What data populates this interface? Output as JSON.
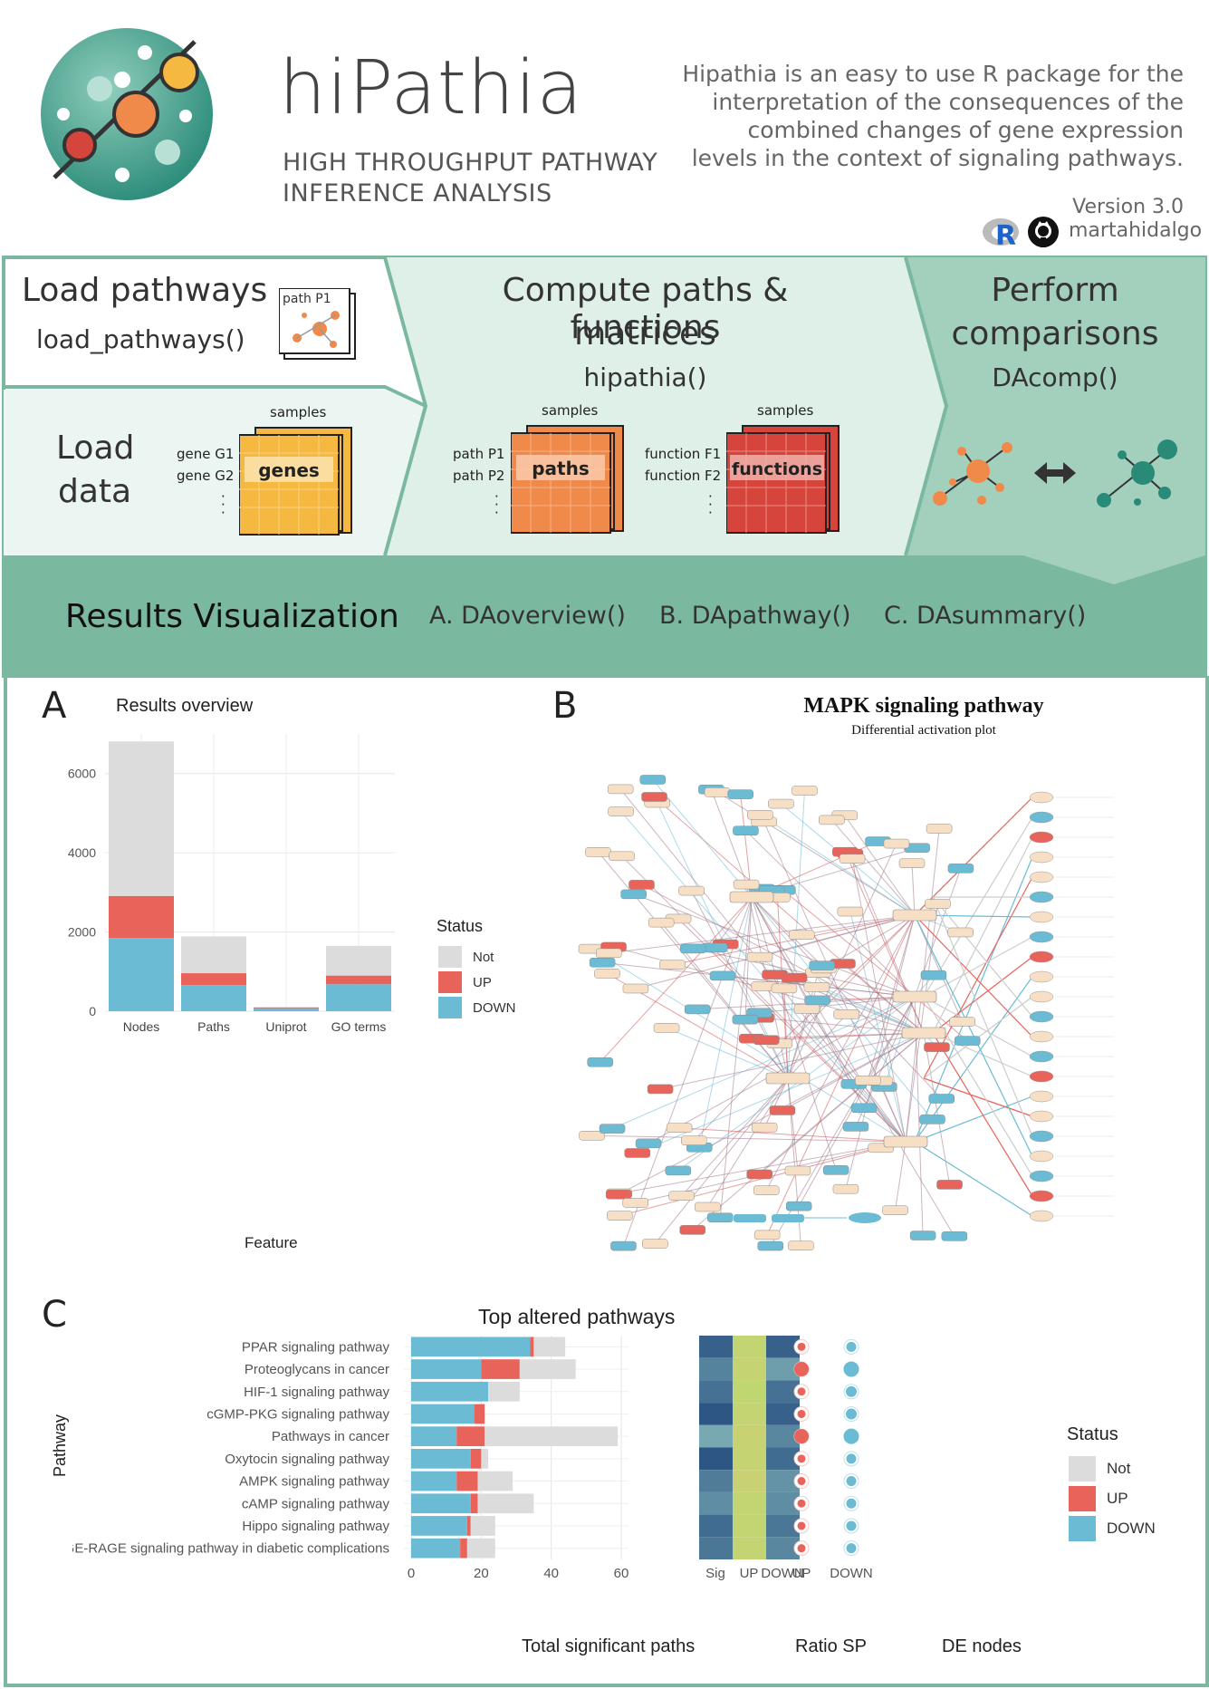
{
  "header": {
    "title": "hiPathia",
    "subtitle_line1": "HIGH THROUGHPUT  PATHWAY",
    "subtitle_line2": "INFERENCE ANALYSIS",
    "description": [
      "Hipathia is an easy to use R package for the",
      "interpretation of the consequences of the",
      "combined changes of gene expression",
      "levels in the context of signaling pathways."
    ],
    "version": "Version 3.0",
    "author": "martahidalgo",
    "r_logo_letter": "R"
  },
  "workflow": {
    "load_pathways": {
      "title": "Load pathways",
      "fn": "load_pathways()",
      "icon_label": "path P1"
    },
    "load_data": {
      "title_line1": "Load",
      "title_line2": "data",
      "samples": "samples",
      "row1": "gene G1",
      "row2": "gene G2",
      "matrix_label": "genes"
    },
    "compute": {
      "title_line1": "Compute paths & functions",
      "title_line2": "matrices",
      "fn": "hipathia()",
      "samples_a": "samples",
      "samples_b": "samples",
      "path_row1": "path P1",
      "path_row2": "path P2",
      "paths_label": "paths",
      "func_row1": "function F1",
      "func_row2": "function F2",
      "functions_label": "functions"
    },
    "compare": {
      "title_line1": "Perform",
      "title_line2": "comparisons",
      "fn": "DAcomp()"
    }
  },
  "results": {
    "title": "Results Visualization",
    "a": "A. DAoverview()",
    "b": "B. DApathway()",
    "c": "C. DAsummary()"
  },
  "panel_a": {
    "letter": "A",
    "chart_data": {
      "type": "bar",
      "title": "Results overview",
      "xlabel": "Feature",
      "ylabel": "",
      "categories": [
        "Nodes",
        "Paths",
        "Uniprot",
        "GO terms"
      ],
      "series": [
        {
          "name": "DOWN",
          "values": [
            1850,
            660,
            80,
            680
          ]
        },
        {
          "name": "UP",
          "values": [
            1060,
            300,
            15,
            220
          ]
        },
        {
          "name": "Not",
          "values": [
            3900,
            930,
            15,
            750
          ]
        }
      ],
      "yticks": [
        "0",
        "2000",
        "4000",
        "6000"
      ],
      "ylim": [
        0,
        7000
      ],
      "legend_title": "Status",
      "legend": [
        "Not",
        "UP",
        "DOWN"
      ],
      "colors": {
        "Not": "#dcdcdc",
        "UP": "#e8645a",
        "DOWN": "#6bbbd4"
      }
    }
  },
  "panel_b": {
    "letter": "B",
    "title": "MAPK signaling pathway",
    "subtitle": "Differential activation plot"
  },
  "panel_c": {
    "letter": "C",
    "chart_data": {
      "type": "bar",
      "title": "Top altered pathways",
      "ylabel": "Pathway",
      "xlabel": "Total significant paths",
      "categories": [
        "PPAR signaling pathway",
        "Proteoglycans in cancer",
        "HIF-1 signaling pathway",
        "cGMP-PKG signaling pathway",
        "Pathways in cancer",
        "Oxytocin signaling pathway",
        "AMPK signaling pathway",
        "cAMP signaling pathway",
        "Hippo signaling pathway",
        "AGE-RAGE signaling pathway in diabetic complications"
      ],
      "series": [
        {
          "name": "DOWN",
          "values": [
            34,
            20,
            22,
            18,
            13,
            17,
            13,
            17,
            16,
            14
          ]
        },
        {
          "name": "UP",
          "values": [
            1,
            11,
            0,
            3,
            8,
            3,
            6,
            2,
            1,
            2
          ]
        },
        {
          "name": "Not",
          "values": [
            9,
            16,
            9,
            0,
            38,
            2,
            10,
            16,
            7,
            8
          ]
        }
      ],
      "xticks": [
        "0",
        "20",
        "40",
        "60"
      ],
      "xlim": [
        0,
        60
      ],
      "ratio_label": "Ratio SP",
      "ratio_cols": [
        "Sig",
        "UP",
        "DOWN"
      ],
      "ratio_values": [
        [
          0.85,
          0.35,
          0.85
        ],
        [
          0.55,
          0.45,
          0.3
        ],
        [
          0.7,
          0.3,
          0.7
        ],
        [
          0.95,
          0.4,
          0.85
        ],
        [
          0.2,
          0.5,
          0.5
        ],
        [
          0.95,
          0.45,
          0.75
        ],
        [
          0.6,
          0.55,
          0.4
        ],
        [
          0.45,
          0.35,
          0.45
        ],
        [
          0.75,
          0.35,
          0.65
        ],
        [
          0.65,
          0.4,
          0.5
        ]
      ],
      "de_label": "DE nodes",
      "de_cols": [
        "UP",
        "DOWN"
      ],
      "de_up": [
        0.3,
        1.0,
        0.3,
        0.3,
        1.0,
        0.3,
        0.3,
        0.3,
        0.3,
        0.3
      ],
      "de_down": [
        0.4,
        1.0,
        0.5,
        0.5,
        1.0,
        0.4,
        0.4,
        0.4,
        0.4,
        0.4
      ],
      "legend_title": "Status",
      "legend": [
        "Not",
        "UP",
        "DOWN"
      ],
      "colors": {
        "Not": "#dcdcdc",
        "UP": "#e8645a",
        "DOWN": "#6bbbd4"
      }
    }
  }
}
